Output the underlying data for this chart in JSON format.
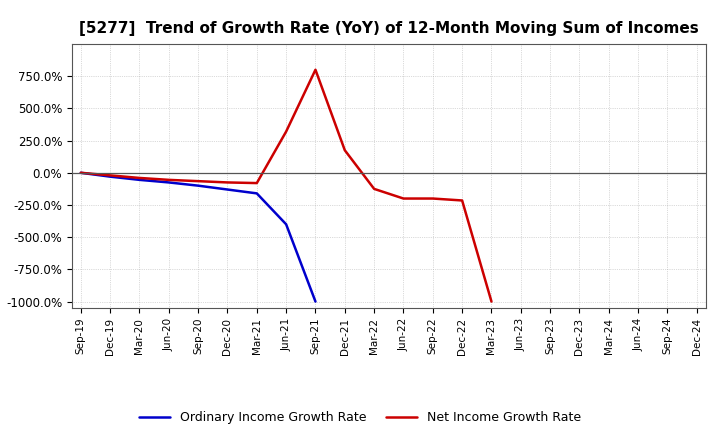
{
  "title": "[5277]  Trend of Growth Rate (YoY) of 12-Month Moving Sum of Incomes",
  "title_fontsize": 11,
  "background_color": "#ffffff",
  "grid_color": "#999999",
  "ylim": [
    -1050,
    1000
  ],
  "yticks": [
    -1000,
    -750,
    -500,
    -250,
    0,
    250,
    500,
    750
  ],
  "ordinary_income": {
    "values": [
      0,
      -30,
      -55,
      -75,
      -100,
      -130,
      -160,
      -400,
      -1000,
      null,
      null,
      null,
      null,
      null,
      null,
      null,
      null,
      null,
      null,
      null,
      null,
      null
    ],
    "color": "#0000cc",
    "label": "Ordinary Income Growth Rate",
    "linewidth": 1.8
  },
  "net_income": {
    "values": [
      0,
      -20,
      -40,
      -55,
      -65,
      -75,
      -80,
      320,
      800,
      175,
      -125,
      -200,
      -200,
      -215,
      -1000,
      null,
      null,
      null,
      null,
      null,
      null,
      null
    ],
    "color": "#cc0000",
    "label": "Net Income Growth Rate",
    "linewidth": 1.8
  },
  "xtick_labels": [
    "Sep-19",
    "Dec-19",
    "Mar-20",
    "Jun-20",
    "Sep-20",
    "Dec-20",
    "Mar-21",
    "Jun-21",
    "Sep-21",
    "Dec-21",
    "Mar-22",
    "Jun-22",
    "Sep-22",
    "Dec-22",
    "Mar-23",
    "Jun-23",
    "Sep-23",
    "Dec-23",
    "Mar-24",
    "Jun-24",
    "Sep-24",
    "Dec-24"
  ]
}
